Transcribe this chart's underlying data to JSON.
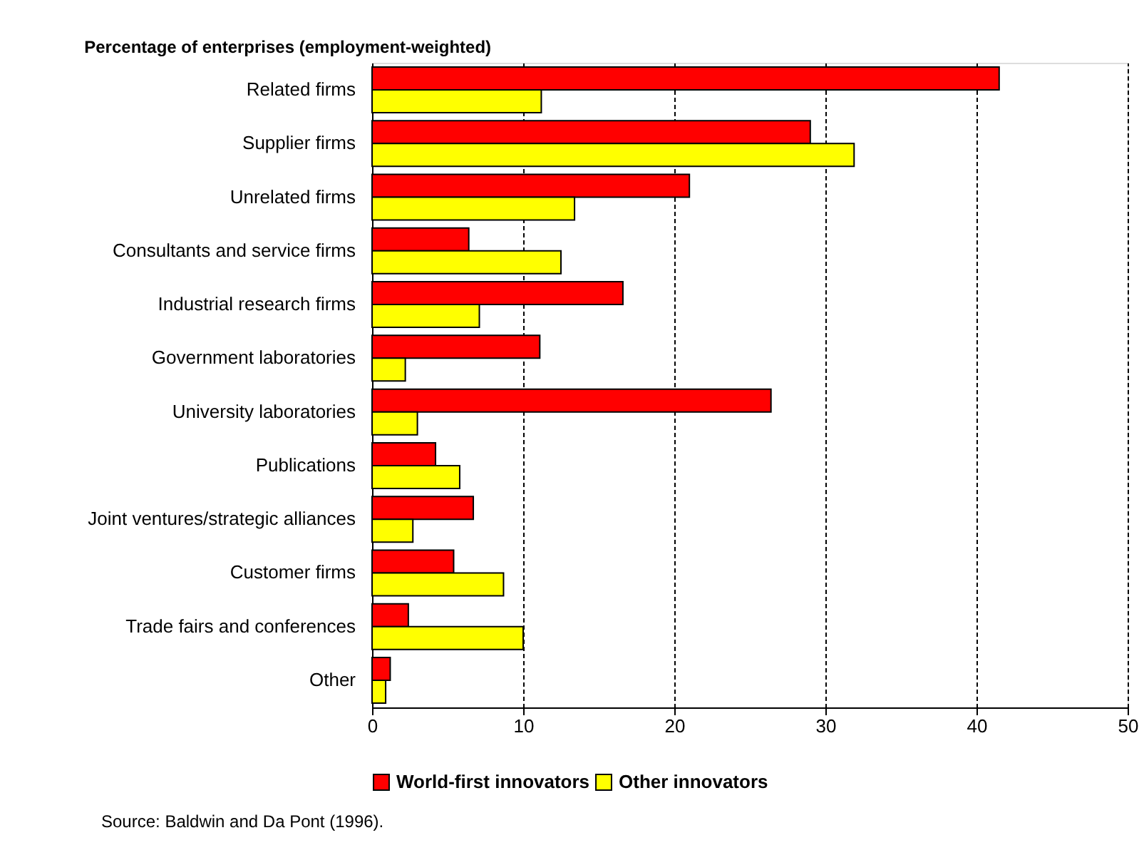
{
  "chart_data": {
    "type": "bar",
    "orientation": "horizontal",
    "title": "Percentage of enterprises (employment-weighted)",
    "categories": [
      "Related firms",
      "Supplier firms",
      "Unrelated firms",
      "Consultants and service firms",
      "Industrial research firms",
      "Government laboratories",
      "University laboratories",
      "Publications",
      "Joint ventures/strategic alliances",
      "Customer firms",
      "Trade fairs and conferences",
      "Other"
    ],
    "series": [
      {
        "name": "World-first innovators",
        "color": "#ff0000",
        "values": [
          41.5,
          29.0,
          21.0,
          6.4,
          16.6,
          11.1,
          26.4,
          4.2,
          6.7,
          5.4,
          2.4,
          1.2
        ]
      },
      {
        "name": "Other innovators",
        "color": "#ffff00",
        "values": [
          11.2,
          31.9,
          13.4,
          12.5,
          7.1,
          2.2,
          3.0,
          5.8,
          2.7,
          8.7,
          10.0,
          0.9
        ]
      }
    ],
    "xlim": [
      0,
      50
    ],
    "xticks": [
      0,
      10,
      20,
      30,
      40,
      50
    ],
    "grid": "x",
    "legend": "bottom",
    "annotations": [
      "Source:  Baldwin and Da Pont (1996)."
    ]
  }
}
